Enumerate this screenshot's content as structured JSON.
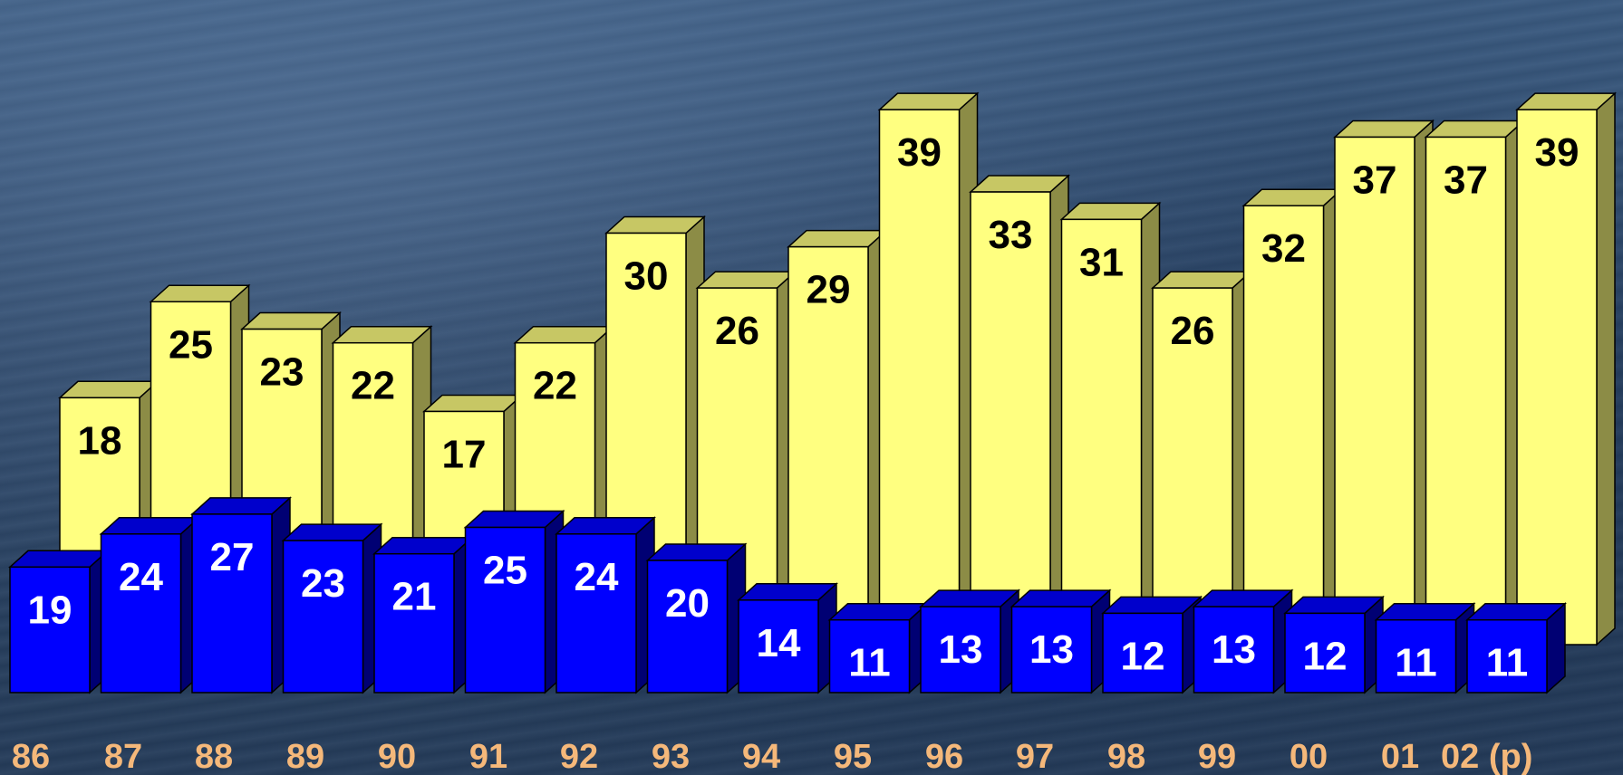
{
  "chart_data": {
    "type": "bar",
    "categories": [
      "86",
      "87",
      "88",
      "89",
      "90",
      "91",
      "92",
      "93",
      "94",
      "95",
      "96",
      "97",
      "98",
      "99",
      "00",
      "01",
      "02 (p)"
    ],
    "series": [
      {
        "color": "#FFFF80",
        "label_color": "#000000",
        "values": [
          18,
          25,
          23,
          22,
          17,
          22,
          30,
          26,
          29,
          39,
          33,
          31,
          26,
          32,
          37,
          37,
          39
        ]
      },
      {
        "color": "#0000FF",
        "label_color": "#FFFFFF",
        "values": [
          19,
          24,
          27,
          23,
          21,
          25,
          24,
          20,
          14,
          11,
          13,
          13,
          12,
          13,
          12,
          11,
          11
        ]
      }
    ],
    "title": "",
    "xlabel": "",
    "ylabel": "",
    "tick_label_color": "#F5B87A",
    "legend": "none",
    "grid": false,
    "style": "3d-columns"
  }
}
